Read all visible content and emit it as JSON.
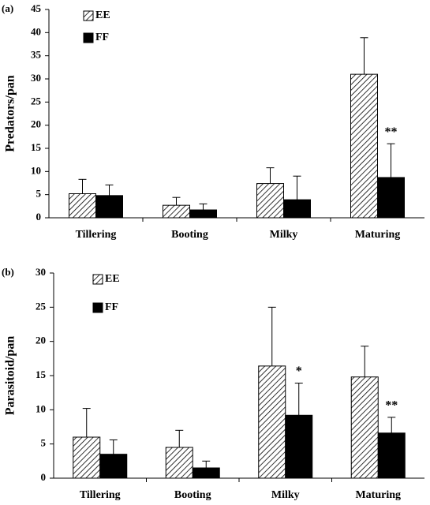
{
  "chart_data": [
    {
      "type": "bar",
      "panel_label": "(a)",
      "y_label": "Predators/pan",
      "categories": [
        "Tillering",
        "Booting",
        "Milky",
        "Maturing"
      ],
      "series": [
        {
          "name": "EE",
          "color": "#000000",
          "pattern": "hatch",
          "values": [
            5.2,
            2.7,
            7.4,
            31
          ],
          "errors": [
            3.1,
            1.7,
            3.4,
            7.9
          ],
          "significance": [
            null,
            null,
            null,
            null
          ]
        },
        {
          "name": "FF",
          "color": "#000000",
          "pattern": "solid",
          "values": [
            4.8,
            1.7,
            3.9,
            8.7
          ],
          "errors": [
            2.3,
            1.3,
            5.1,
            7.3
          ],
          "significance": [
            null,
            null,
            null,
            "**"
          ]
        }
      ],
      "ylim": [
        0,
        45
      ],
      "yticks": [
        0,
        5,
        10,
        15,
        20,
        25,
        30,
        35,
        40,
        45
      ],
      "grid": false
    },
    {
      "type": "bar",
      "panel_label": "(b)",
      "y_label": "Parasitoid/pan",
      "categories": [
        "Tillering",
        "Booting",
        "Milky",
        "Maturing"
      ],
      "series": [
        {
          "name": "EE",
          "color": "#000000",
          "pattern": "hatch",
          "values": [
            6.0,
            4.5,
            16.4,
            14.8
          ],
          "errors": [
            4.2,
            2.5,
            8.6,
            4.5
          ],
          "significance": [
            null,
            null,
            null,
            null
          ]
        },
        {
          "name": "FF",
          "color": "#000000",
          "pattern": "solid",
          "values": [
            3.5,
            1.5,
            9.2,
            6.6
          ],
          "errors": [
            2.1,
            1.0,
            4.7,
            2.3
          ],
          "significance": [
            null,
            null,
            "*",
            "**"
          ]
        }
      ],
      "ylim": [
        0,
        30
      ],
      "yticks": [
        0,
        5,
        10,
        15,
        20,
        25,
        30
      ],
      "grid": false
    }
  ]
}
